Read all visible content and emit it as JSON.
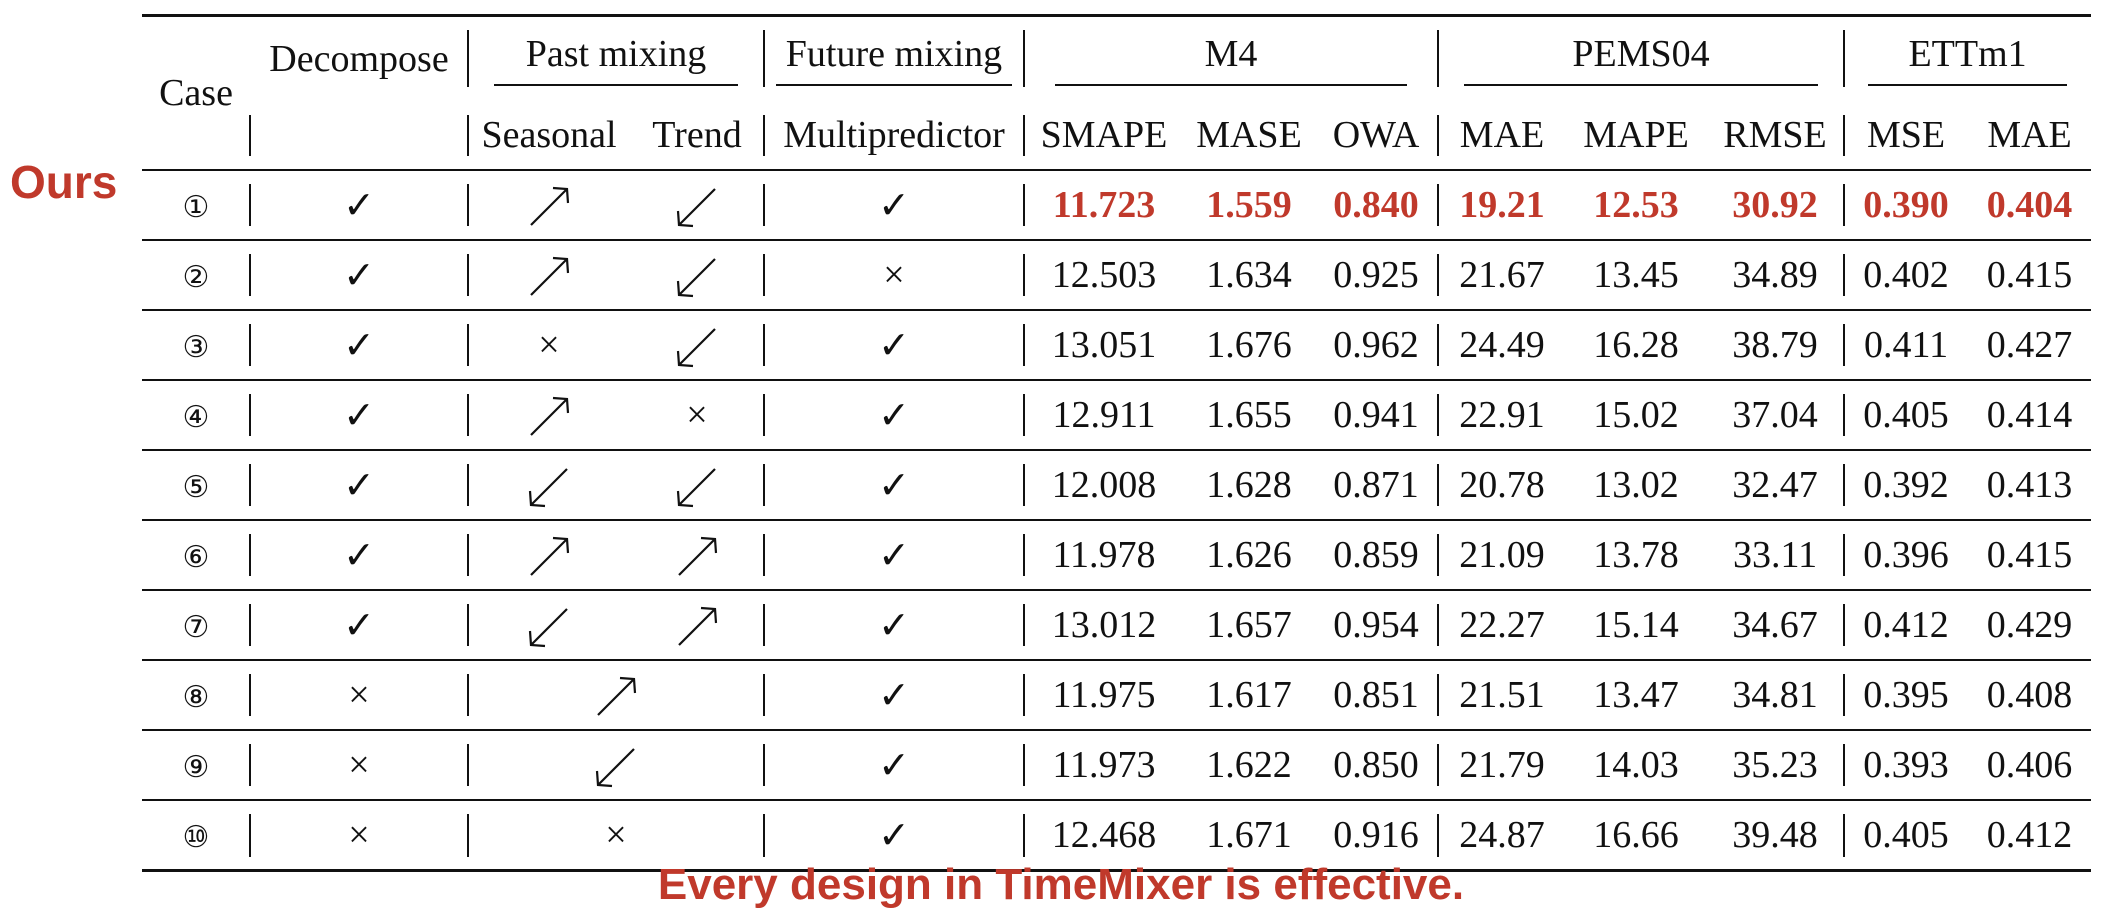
{
  "side_label": "Ours",
  "caption": "Every design in TimeMixer is effective.",
  "colors": {
    "highlight": "#c0392b",
    "text": "#111111"
  },
  "header": {
    "case": "Case",
    "decompose": "Decompose",
    "past_mixing": "Past mixing",
    "future_mixing": "Future mixing",
    "m4": "M4",
    "pems04": "PEMS04",
    "ettm1": "ETTm1",
    "seasonal": "Seasonal",
    "trend": "Trend",
    "multipredictor": "Multipredictor",
    "smape": "SMAPE",
    "mase": "MASE",
    "owa": "OWA",
    "mae": "MAE",
    "mape": "MAPE",
    "rmse": "RMSE",
    "mse": "MSE",
    "mae2": "MAE"
  },
  "symbols": {
    "check": "✓",
    "cross": "×"
  },
  "rows": [
    {
      "case": "①",
      "decompose": "check",
      "seasonal": "up",
      "trend": "down",
      "merged": null,
      "multi": "check",
      "vals": [
        "11.723",
        "1.559",
        "0.840",
        "19.21",
        "12.53",
        "30.92",
        "0.390",
        "0.404"
      ],
      "ours": true
    },
    {
      "case": "②",
      "decompose": "check",
      "seasonal": "up",
      "trend": "down",
      "merged": null,
      "multi": "cross",
      "vals": [
        "12.503",
        "1.634",
        "0.925",
        "21.67",
        "13.45",
        "34.89",
        "0.402",
        "0.415"
      ]
    },
    {
      "case": "③",
      "decompose": "check",
      "seasonal": "cross",
      "trend": "down",
      "merged": null,
      "multi": "check",
      "vals": [
        "13.051",
        "1.676",
        "0.962",
        "24.49",
        "16.28",
        "38.79",
        "0.411",
        "0.427"
      ]
    },
    {
      "case": "④",
      "decompose": "check",
      "seasonal": "up",
      "trend": "cross",
      "merged": null,
      "multi": "check",
      "vals": [
        "12.911",
        "1.655",
        "0.941",
        "22.91",
        "15.02",
        "37.04",
        "0.405",
        "0.414"
      ]
    },
    {
      "case": "⑤",
      "decompose": "check",
      "seasonal": "down",
      "trend": "down",
      "merged": null,
      "multi": "check",
      "vals": [
        "12.008",
        "1.628",
        "0.871",
        "20.78",
        "13.02",
        "32.47",
        "0.392",
        "0.413"
      ]
    },
    {
      "case": "⑥",
      "decompose": "check",
      "seasonal": "up",
      "trend": "up",
      "merged": null,
      "multi": "check",
      "vals": [
        "11.978",
        "1.626",
        "0.859",
        "21.09",
        "13.78",
        "33.11",
        "0.396",
        "0.415"
      ]
    },
    {
      "case": "⑦",
      "decompose": "check",
      "seasonal": "down",
      "trend": "up",
      "merged": null,
      "multi": "check",
      "vals": [
        "13.012",
        "1.657",
        "0.954",
        "22.27",
        "15.14",
        "34.67",
        "0.412",
        "0.429"
      ]
    },
    {
      "case": "⑧",
      "decompose": "cross",
      "seasonal": null,
      "trend": null,
      "merged": "up",
      "multi": "check",
      "vals": [
        "11.975",
        "1.617",
        "0.851",
        "21.51",
        "13.47",
        "34.81",
        "0.395",
        "0.408"
      ]
    },
    {
      "case": "⑨",
      "decompose": "cross",
      "seasonal": null,
      "trend": null,
      "merged": "down",
      "multi": "check",
      "vals": [
        "11.973",
        "1.622",
        "0.850",
        "21.79",
        "14.03",
        "35.23",
        "0.393",
        "0.406"
      ]
    },
    {
      "case": "⑩",
      "decompose": "cross",
      "seasonal": null,
      "trend": null,
      "merged": "cross",
      "multi": "check",
      "vals": [
        "12.468",
        "1.671",
        "0.916",
        "24.87",
        "16.66",
        "39.48",
        "0.405",
        "0.412"
      ]
    }
  ]
}
